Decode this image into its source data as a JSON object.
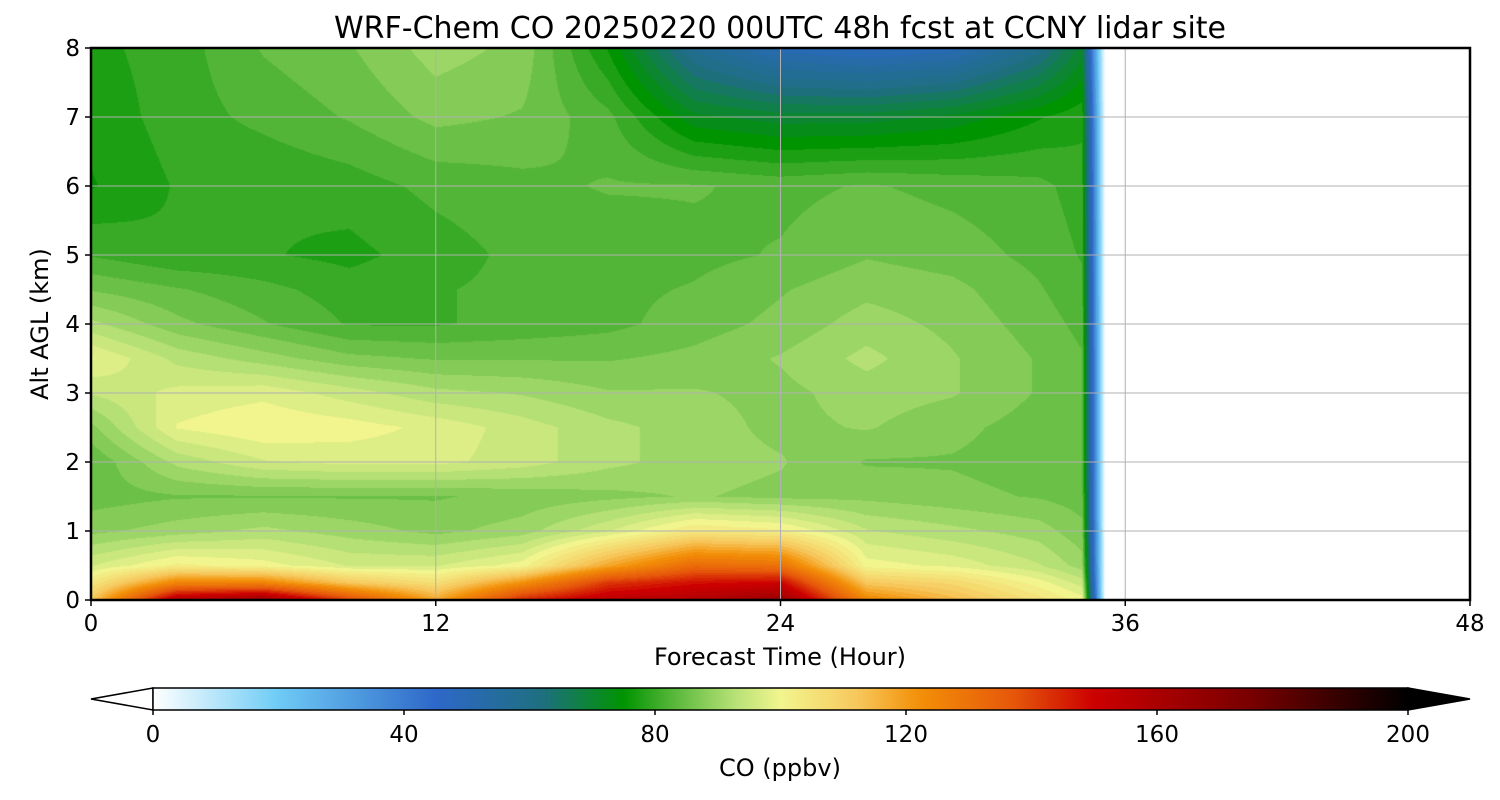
{
  "chart_data": {
    "type": "heatmap",
    "title": "WRF-Chem CO  20250220 00UTC 48h fcst at CCNY lidar site",
    "xlabel": "Forecast Time (Hour)",
    "ylabel": "Alt AGL (km)",
    "xlim": [
      0,
      48
    ],
    "ylim": [
      0,
      8
    ],
    "xticks": [
      0,
      12,
      24,
      36,
      48
    ],
    "yticks": [
      0,
      1,
      2,
      3,
      4,
      5,
      6,
      7,
      8
    ],
    "grid": true,
    "data_end_hour": 34.5,
    "z_units": "ppbv",
    "grid_x_hours": [
      0,
      3,
      6,
      9,
      12,
      15,
      18,
      21,
      24,
      27,
      30,
      33,
      34.5
    ],
    "grid_y_km": [
      0,
      0.25,
      0.5,
      1,
      1.5,
      2,
      2.5,
      3,
      3.5,
      4,
      4.5,
      5,
      6,
      7,
      8
    ],
    "values": [
      [
        112,
        158,
        165,
        140,
        118,
        145,
        155,
        158,
        165,
        125,
        115,
        105,
        100
      ],
      [
        104,
        125,
        125,
        112,
        106,
        122,
        142,
        148,
        150,
        112,
        108,
        100,
        95
      ],
      [
        96,
        102,
        100,
        96,
        96,
        100,
        118,
        132,
        130,
        100,
        98,
        94,
        90
      ],
      [
        88,
        90,
        92,
        90,
        88,
        90,
        96,
        104,
        102,
        94,
        92,
        90,
        87
      ],
      [
        85,
        86,
        86,
        86,
        86,
        87,
        88,
        89,
        88,
        88,
        87,
        86,
        85
      ],
      [
        84,
        92,
        96,
        97,
        97,
        95,
        92,
        90,
        89,
        86,
        86,
        85,
        84
      ],
      [
        88,
        99,
        101,
        100,
        98,
        95,
        92,
        90,
        88,
        89,
        87,
        85,
        84
      ],
      [
        94,
        97,
        98,
        95,
        92,
        91,
        89,
        89,
        88,
        90,
        89,
        86,
        84
      ],
      [
        99,
        93,
        90,
        87,
        86,
        86,
        86,
        87,
        89,
        92,
        89,
        86,
        84
      ],
      [
        92,
        87,
        84,
        81,
        81,
        82,
        83,
        85,
        87,
        90,
        88,
        85,
        83
      ],
      [
        86,
        84,
        82,
        80,
        81,
        82,
        83,
        84,
        86,
        88,
        87,
        84,
        82
      ],
      [
        81,
        79,
        79,
        78,
        80,
        82,
        82,
        83,
        84,
        86,
        85,
        83,
        81
      ],
      [
        76,
        79,
        79,
        80,
        82,
        83,
        84,
        84,
        83,
        84,
        83,
        82,
        80
      ],
      [
        77,
        80,
        82,
        84,
        87,
        86,
        82,
        72,
        70,
        70,
        72,
        76,
        78
      ],
      [
        78,
        80,
        84,
        86,
        90,
        88,
        76,
        58,
        50,
        48,
        50,
        60,
        70
      ]
    ],
    "colorbar": {
      "label": "CO  (ppbv)",
      "min": 0,
      "max": 200,
      "ticks": [
        0,
        40,
        80,
        120,
        160,
        200
      ],
      "extend": "both",
      "stops": [
        {
          "value": 0,
          "color": "#ffffff"
        },
        {
          "value": 20,
          "color": "#6ecbf5"
        },
        {
          "value": 45,
          "color": "#2e68c9"
        },
        {
          "value": 62,
          "color": "#1e6f80"
        },
        {
          "value": 75,
          "color": "#009400"
        },
        {
          "value": 82,
          "color": "#4eb334"
        },
        {
          "value": 92,
          "color": "#b0df73"
        },
        {
          "value": 100,
          "color": "#f2f58e"
        },
        {
          "value": 112,
          "color": "#f7c95e"
        },
        {
          "value": 122,
          "color": "#f39008"
        },
        {
          "value": 137,
          "color": "#e6580a"
        },
        {
          "value": 150,
          "color": "#cc0000"
        },
        {
          "value": 175,
          "color": "#780000"
        },
        {
          "value": 200,
          "color": "#000000"
        }
      ],
      "under_color": "#ffffff",
      "over_color": "#000000"
    }
  }
}
